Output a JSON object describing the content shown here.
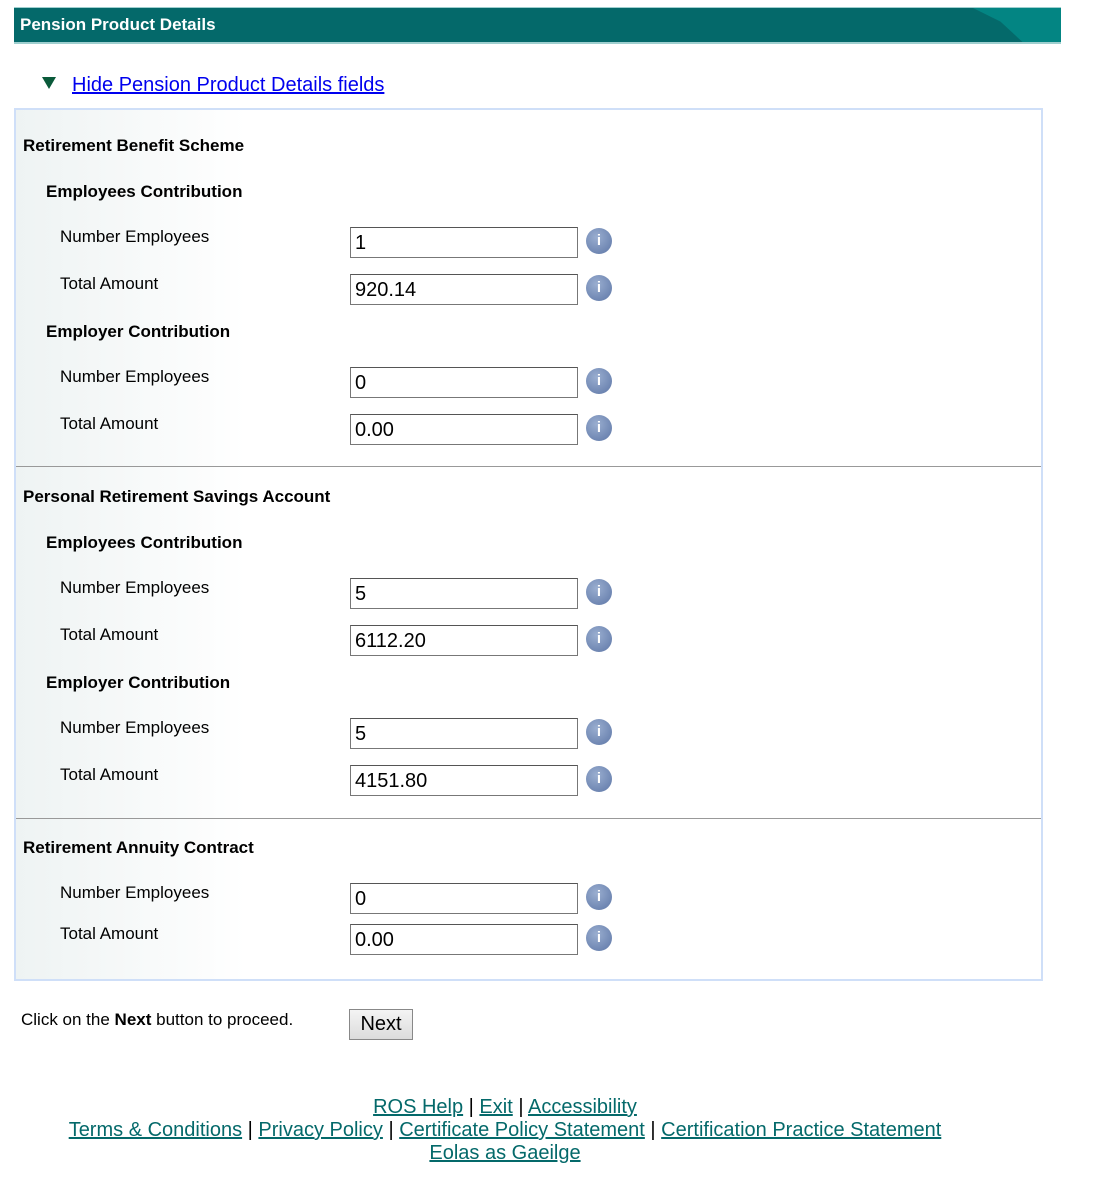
{
  "header": {
    "title": "Pension Product Details"
  },
  "toggle_link": "Hide Pension Product Details  fields",
  "sections": [
    {
      "title": "Retirement Benefit Scheme",
      "groups": [
        {
          "title": "Employees Contribution",
          "fields": [
            {
              "label": "Number Employees",
              "value": "1"
            },
            {
              "label": "Total Amount",
              "value": "920.14"
            }
          ]
        },
        {
          "title": "Employer Contribution",
          "fields": [
            {
              "label": "Number Employees",
              "value": "0"
            },
            {
              "label": "Total Amount",
              "value": "0.00"
            }
          ]
        }
      ]
    },
    {
      "title": "Personal Retirement Savings Account",
      "groups": [
        {
          "title": "Employees Contribution",
          "fields": [
            {
              "label": "Number Employees",
              "value": "5"
            },
            {
              "label": "Total Amount",
              "value": "6112.20"
            }
          ]
        },
        {
          "title": "Employer Contribution",
          "fields": [
            {
              "label": "Number Employees",
              "value": "5"
            },
            {
              "label": "Total Amount",
              "value": "4151.80"
            }
          ]
        }
      ]
    },
    {
      "title": "Retirement Annuity Contract",
      "groups": [
        {
          "title": "",
          "fields": [
            {
              "label": "Number Employees",
              "value": "0"
            },
            {
              "label": "Total Amount",
              "value": "0.00"
            }
          ]
        }
      ]
    }
  ],
  "info_icon": "i",
  "proceed": {
    "pre": "Click on the ",
    "bold": "Next",
    "post": " button to proceed."
  },
  "next_label": "Next",
  "footer": {
    "line1": [
      "ROS Help",
      "Exit",
      "Accessibility"
    ],
    "line2": [
      "Terms & Conditions",
      "Privacy Policy",
      "Certificate Policy Statement",
      "Certification Practice Statement"
    ],
    "line3": [
      "Eolas as Gaeilge"
    ],
    "separator": " | "
  }
}
